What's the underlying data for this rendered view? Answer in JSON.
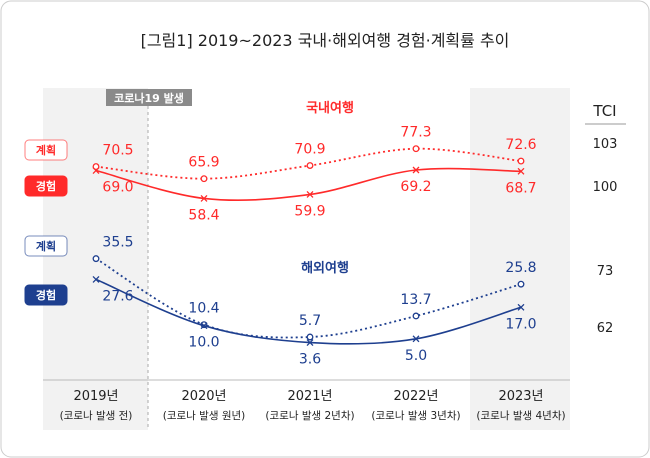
{
  "chart_data": {
    "type": "line",
    "title": "[그림1] 2019~2023 국내·해외여행 경험·계획률 추이",
    "categories": [
      "2019년",
      "2020년",
      "2021년",
      "2022년",
      "2023년"
    ],
    "subcategories": [
      "(코로나 발생 전)",
      "(코로나 발생 원년)",
      "(코로나 발생 2년차)",
      "(코로나 발생 3년차)",
      "(코로나 발생 4년차)"
    ],
    "annotation": "코로나19 발생",
    "groups": [
      {
        "label": "국내여행",
        "color": "#ff2a2a",
        "series": [
          {
            "name": "계획",
            "style": "dotted",
            "marker": "circle",
            "values": [
              70.5,
              65.9,
              70.9,
              77.3,
              72.6
            ]
          },
          {
            "name": "경험",
            "style": "solid",
            "marker": "x",
            "values": [
              69.0,
              58.4,
              59.9,
              69.2,
              68.7
            ]
          }
        ]
      },
      {
        "label": "해외여행",
        "color": "#1e3f8f",
        "series": [
          {
            "name": "계획",
            "style": "dotted",
            "marker": "circle",
            "values": [
              35.5,
              10.4,
              5.7,
              13.7,
              25.8
            ]
          },
          {
            "name": "경험",
            "style": "solid",
            "marker": "x",
            "values": [
              27.6,
              10.0,
              3.6,
              5.0,
              17.0
            ]
          }
        ]
      }
    ],
    "tci": {
      "header": "TCI",
      "values": [
        "103",
        "100",
        "73",
        "62"
      ]
    },
    "highlighted_categories": [
      "2019년",
      "2023년"
    ]
  }
}
